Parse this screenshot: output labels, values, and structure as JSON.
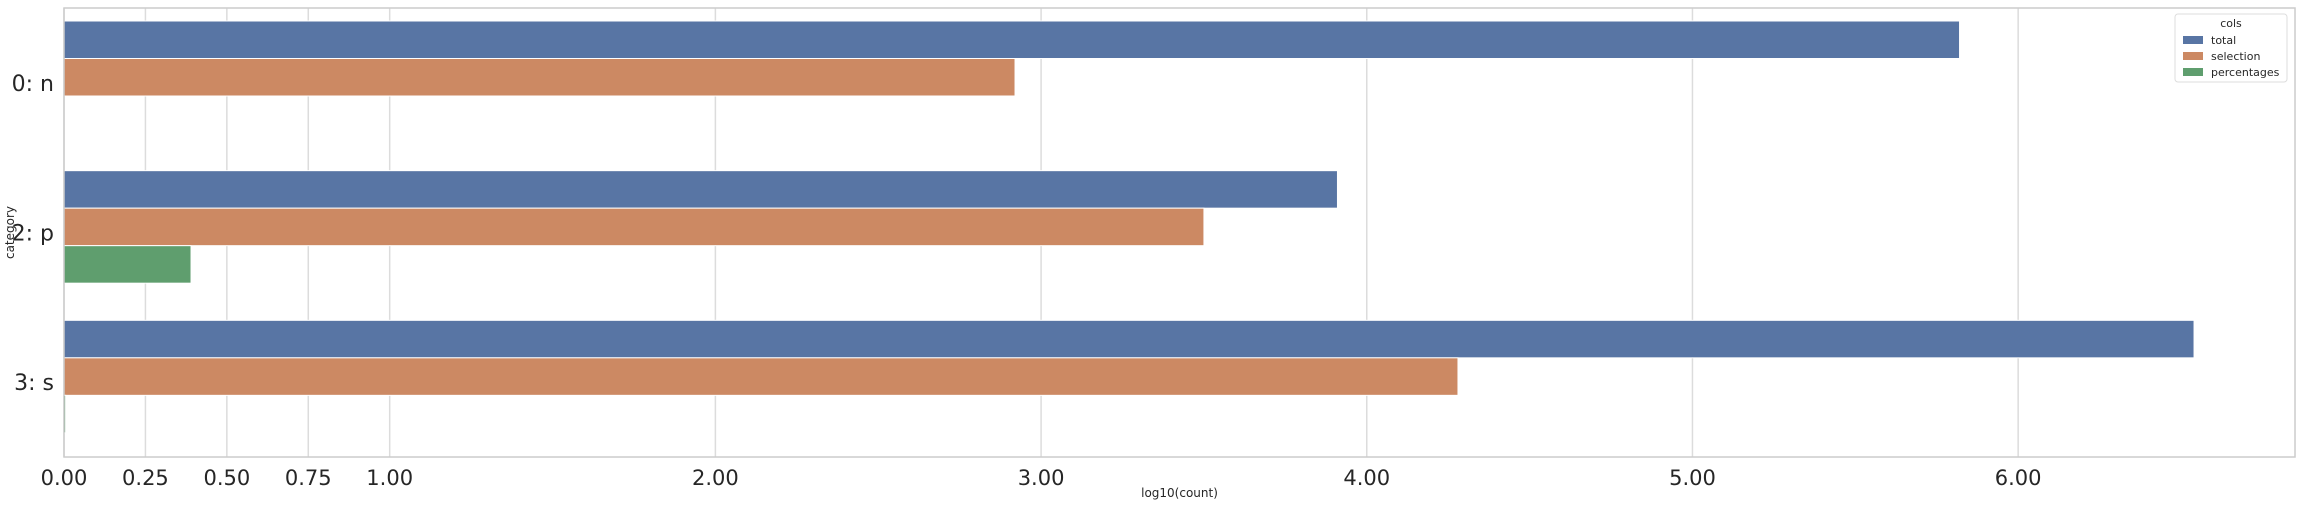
{
  "chart_data": {
    "type": "bar",
    "orientation": "horizontal",
    "xlabel": "log10(count)",
    "ylabel": "category",
    "xlim": [
      0,
      6.85
    ],
    "xticks": [
      0,
      0.25,
      0.5,
      0.75,
      1,
      2,
      3,
      4,
      5,
      6
    ],
    "xtick_labels": [
      "0.00",
      "0.25",
      "0.50",
      "0.75",
      "1.00",
      "2.00",
      "3.00",
      "4.00",
      "5.00",
      "6.00"
    ],
    "grid": "vertical",
    "categories": [
      "0: n",
      "2: p",
      "3: s"
    ],
    "legend": {
      "title": "cols",
      "position": "top-right"
    },
    "series": [
      {
        "name": "total",
        "color": "#5875a4",
        "values": [
          5.82,
          3.91,
          6.54
        ]
      },
      {
        "name": "selection",
        "color": "#cc8963",
        "values": [
          2.92,
          3.5,
          4.28
        ]
      },
      {
        "name": "percentages",
        "color": "#5f9e6e",
        "values": [
          null,
          0.39,
          0.005
        ]
      }
    ]
  }
}
